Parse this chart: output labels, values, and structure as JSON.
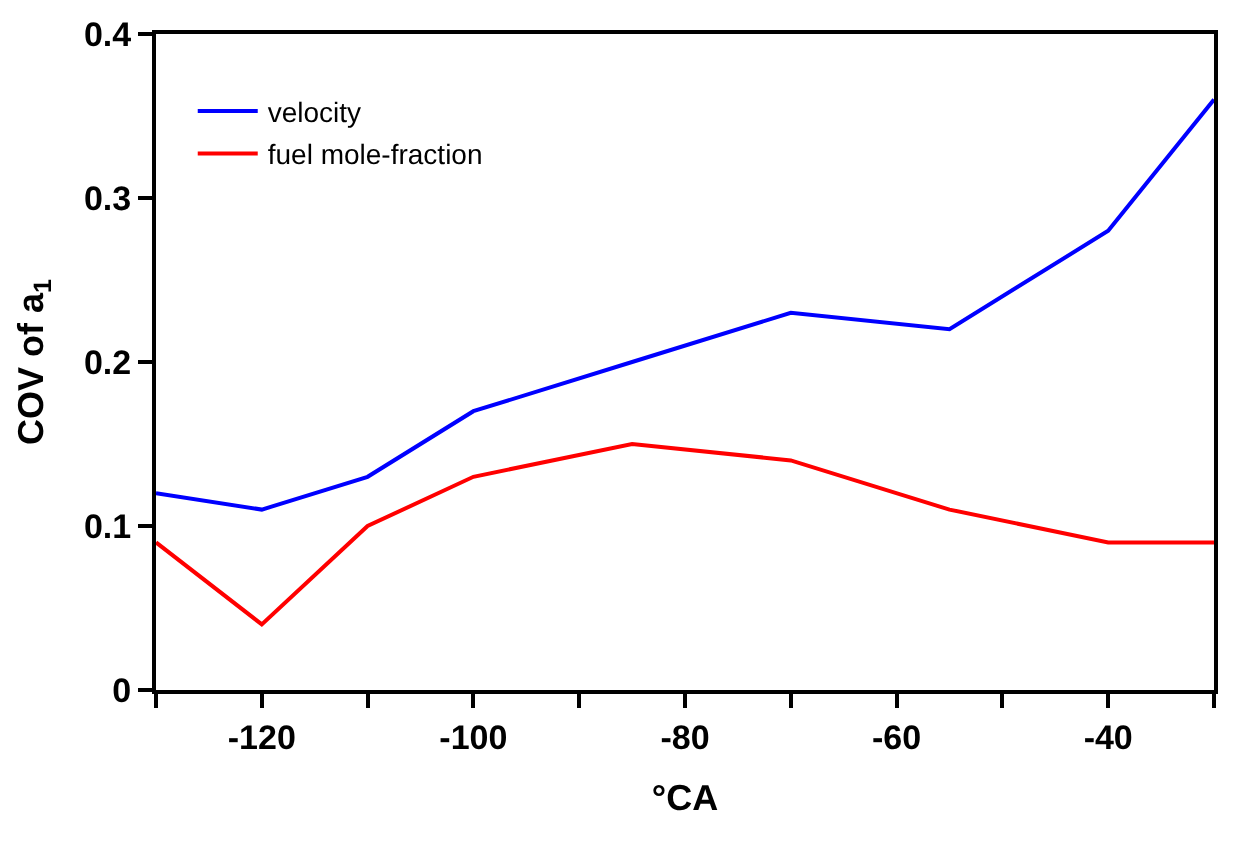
{
  "chart_data": {
    "type": "line",
    "xlabel": "°CA",
    "ylabel": "COV of a$_{1}$",
    "xlim": [
      -130,
      -30
    ],
    "xticks": [
      {
        "value": -130,
        "label": null
      },
      -120,
      {
        "value": -110,
        "label": null
      },
      -100,
      {
        "value": -90,
        "label": null
      },
      -80,
      {
        "value": -70,
        "label": null
      },
      -60,
      {
        "value": -50,
        "label": null
      },
      -40,
      {
        "value": -30,
        "label": null
      }
    ],
    "ylim": [
      0,
      0.4
    ],
    "yticks": [
      0,
      0.1,
      0.2,
      0.3,
      0.4
    ],
    "x": [
      -130,
      -120,
      -110,
      -100,
      -85,
      -70,
      -55,
      -40,
      -30
    ],
    "series": [
      {
        "name": "velocity",
        "color": "#0000ff",
        "values": [
          0.12,
          0.11,
          0.13,
          0.17,
          0.2,
          0.23,
          0.22,
          0.28,
          0.36
        ]
      },
      {
        "name": "fuel mole-fraction",
        "color": "#ff0000",
        "values": [
          0.09,
          0.04,
          0.1,
          0.13,
          0.15,
          0.14,
          0.11,
          0.09,
          0.09
        ]
      }
    ],
    "legend": "top left",
    "marker": "none",
    "line_style": "solid"
  }
}
